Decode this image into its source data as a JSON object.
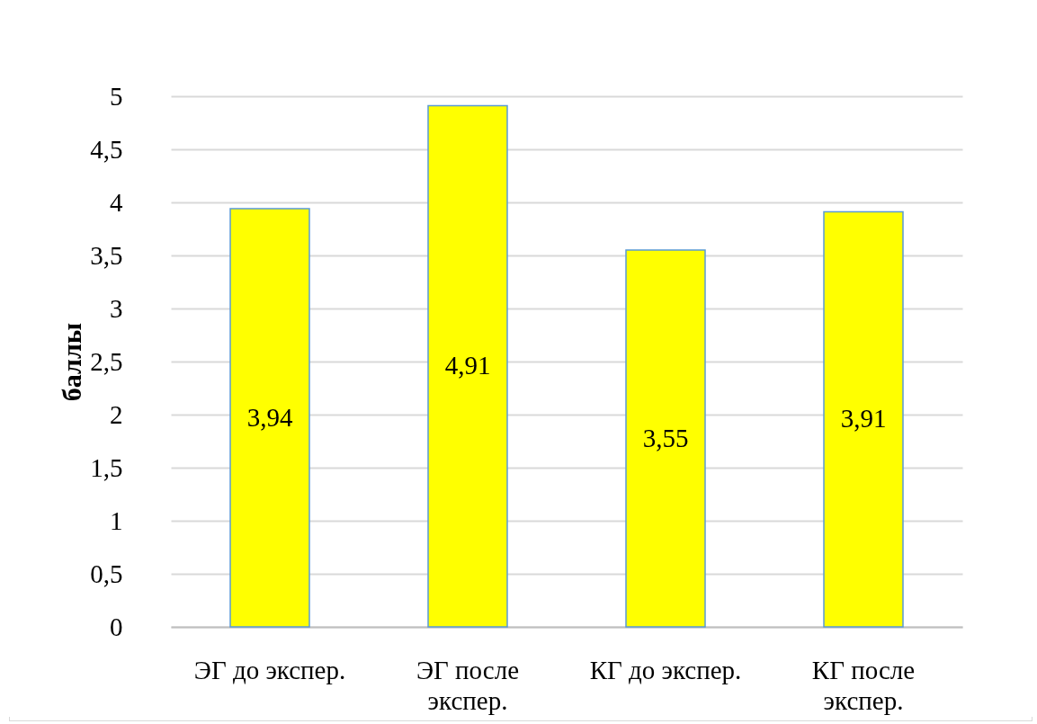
{
  "chart_data": {
    "type": "bar",
    "ylabel": "баллы",
    "categories": [
      "ЭГ до экспер.",
      "ЭГ после экспер.",
      "КГ до экспер.",
      "КГ после экспер."
    ],
    "values": [
      3.94,
      4.91,
      3.55,
      3.91
    ],
    "value_labels": [
      "3,94",
      "4,91",
      "3,55",
      "3,91"
    ],
    "color": "#ffff00",
    "ylim": [
      0,
      5
    ],
    "yticks": [
      0,
      {
        "value": 0.5,
        "label": "0,5"
      },
      1,
      {
        "value": 1.5,
        "label": "1,5"
      },
      2,
      {
        "value": 2.5,
        "label": "2,5"
      },
      3,
      {
        "value": 3.5,
        "label": "3,5"
      },
      4,
      {
        "value": 4.5,
        "label": "4,5"
      },
      5
    ],
    "grid": "y"
  }
}
